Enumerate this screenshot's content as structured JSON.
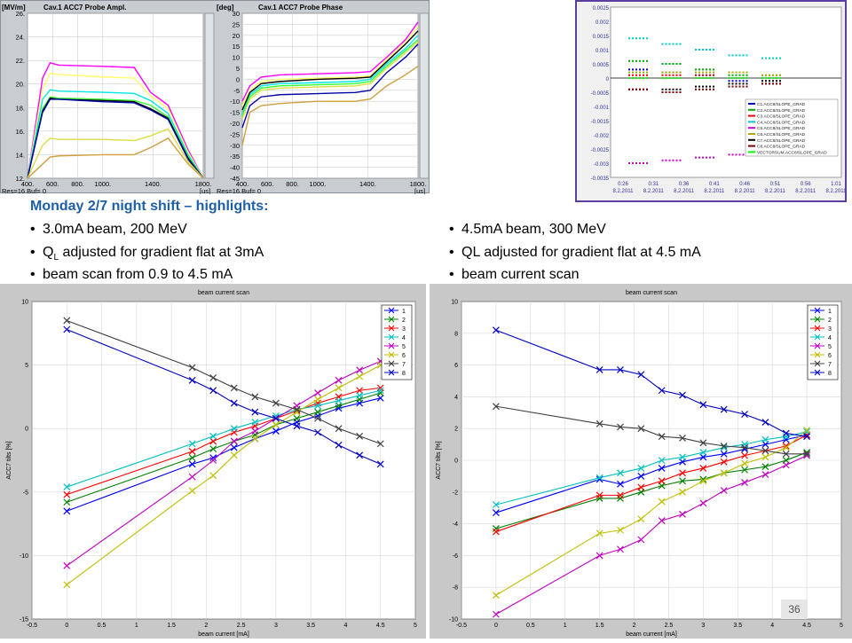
{
  "heading": "Monday 2/7 night shift – highlights:",
  "left_bullets": [
    "3.0mA beam, 200 MeV",
    "Q",
    "L",
    " adjusted for gradient flat at 3mA",
    "beam scan from 0.9 to 4.5 mA"
  ],
  "right_bullets": [
    "4.5mA beam, 300 MeV",
    "QL adjusted for gradient flat at 4.5 mA",
    "beam current scan"
  ],
  "slide_number": "36",
  "scope_left": {
    "title": "Cav.1 ACC7 Probe Ampl.",
    "unit": "[MV/m]",
    "status": "Res=16.Buf= 0",
    "xunit": "[us]",
    "yticks": [
      "26.",
      "24.",
      "22.",
      "20.",
      "18.",
      "16.",
      "14.",
      "12."
    ],
    "xticks": [
      "400.",
      "600.",
      "800.",
      "1000.",
      "1400.",
      "1800."
    ]
  },
  "scope_right": {
    "title": "Cav.1 ACC7 Probe Phase",
    "unit": "[deg]",
    "status": "Res=16.Buf= 0",
    "xunit": "[us]",
    "yticks": [
      "30",
      "25",
      "20",
      "15",
      "10",
      "5",
      "0",
      "-5",
      "-10",
      "-15",
      "-20",
      "-25",
      "-30",
      "-35",
      "-40",
      "-45"
    ],
    "xticks": [
      "400.",
      "600.",
      "800.",
      "1000.",
      "1400.",
      "1800."
    ]
  },
  "chart_data": [
    {
      "type": "line",
      "title": "Cav.1 ACC7 Probe Ampl.",
      "ylabel": "[MV/m]",
      "xlabel": "[us]",
      "xlim": [
        400,
        1800
      ],
      "ylim": [
        12,
        26
      ],
      "colors": [
        "#ff00ff",
        "#ffff66",
        "#00e5e5",
        "#33ff33",
        "#000000",
        "#0000aa",
        "#dddd44",
        "#d0a040"
      ],
      "series": [
        {
          "x": [
            400,
            520,
            580,
            650,
            1000,
            1250,
            1380,
            1520,
            1680,
            1800
          ],
          "values": [
            12,
            20.5,
            21.8,
            21.6,
            21.5,
            21.4,
            19.3,
            18.2,
            14.4,
            12
          ]
        },
        {
          "x": [
            400,
            520,
            580,
            650,
            1000,
            1250,
            1380,
            1520,
            1680,
            1800
          ],
          "values": [
            12,
            19.6,
            20.9,
            20.8,
            20.6,
            20.5,
            19.0,
            17.9,
            14.2,
            12
          ]
        },
        {
          "x": [
            400,
            520,
            580,
            650,
            1000,
            1250,
            1380,
            1520,
            1680,
            1800
          ],
          "values": [
            12,
            18.7,
            19.5,
            19.4,
            19.3,
            19.2,
            18.6,
            17.5,
            14.0,
            12
          ]
        },
        {
          "x": [
            400,
            520,
            580,
            650,
            1000,
            1250,
            1380,
            1520,
            1680,
            1800
          ],
          "values": [
            12,
            17.9,
            18.9,
            18.8,
            18.7,
            18.6,
            18.2,
            17.2,
            13.8,
            12
          ]
        },
        {
          "x": [
            400,
            520,
            580,
            650,
            1000,
            1250,
            1380,
            1520,
            1680,
            1800
          ],
          "values": [
            12,
            17.7,
            18.8,
            18.7,
            18.6,
            18.5,
            17.9,
            17.1,
            13.7,
            12
          ]
        },
        {
          "x": [
            400,
            520,
            580,
            650,
            1000,
            1250,
            1380,
            1520,
            1680,
            1800
          ],
          "values": [
            12,
            17.6,
            18.7,
            18.7,
            18.5,
            18.4,
            17.8,
            17.0,
            13.6,
            12
          ]
        },
        {
          "x": [
            400,
            520,
            580,
            650,
            1000,
            1250,
            1380,
            1520,
            1680,
            1800
          ],
          "values": [
            12,
            14.8,
            15.4,
            15.3,
            15.3,
            15.2,
            15.6,
            16.2,
            13.4,
            12
          ]
        },
        {
          "x": [
            400,
            520,
            580,
            650,
            1000,
            1250,
            1380,
            1520,
            1680,
            1800
          ],
          "values": [
            12,
            13.2,
            13.8,
            13.9,
            14.0,
            14.0,
            14.6,
            15.4,
            13.2,
            12
          ]
        }
      ]
    },
    {
      "type": "line",
      "title": "Cav.1 ACC7 Probe Phase",
      "ylabel": "[deg]",
      "xlabel": "[us]",
      "xlim": [
        400,
        1800
      ],
      "ylim": [
        -45,
        30
      ],
      "colors": [
        "#ff00ff",
        "#ffff66",
        "#00e5e5",
        "#33ff33",
        "#000000",
        "#0000aa",
        "#dddd44",
        "#d0a040"
      ],
      "series": [
        {
          "x": [
            400,
            460,
            550,
            700,
            1000,
            1300,
            1420,
            1550,
            1700,
            1800
          ],
          "values": [
            -10,
            -3,
            1,
            2,
            2.5,
            3,
            3.5,
            10,
            18,
            26
          ]
        },
        {
          "x": [
            400,
            460,
            550,
            700,
            1000,
            1300,
            1420,
            1550,
            1700,
            1800
          ],
          "values": [
            -12,
            -5,
            -1,
            0,
            0.5,
            1,
            1.5,
            9,
            17,
            24
          ]
        },
        {
          "x": [
            400,
            460,
            550,
            700,
            1000,
            1300,
            1420,
            1550,
            1700,
            1800
          ],
          "values": [
            -16,
            -7,
            -3,
            -2,
            -1.5,
            -1,
            0,
            7,
            14,
            20
          ]
        },
        {
          "x": [
            400,
            460,
            550,
            700,
            1000,
            1300,
            1420,
            1550,
            1700,
            1800
          ],
          "values": [
            -17,
            -8,
            -4,
            -3,
            -2.5,
            -2,
            -1,
            6,
            13,
            18
          ]
        },
        {
          "x": [
            400,
            460,
            550,
            700,
            1000,
            1300,
            1420,
            1550,
            1700,
            1800
          ],
          "values": [
            -14,
            -6,
            -2,
            -1,
            0,
            0.5,
            1,
            8,
            16,
            22
          ]
        },
        {
          "x": [
            400,
            460,
            550,
            700,
            1000,
            1300,
            1420,
            1550,
            1700,
            1800
          ],
          "values": [
            -22,
            -12,
            -8,
            -7,
            -6.5,
            -6,
            -5,
            3,
            10,
            16
          ]
        },
        {
          "x": [
            400,
            460,
            550,
            700,
            1000,
            1300,
            1420,
            1550,
            1700,
            1800
          ],
          "values": [
            -18,
            -9,
            -5,
            -4,
            -3.5,
            -3,
            -2,
            5,
            12,
            17
          ]
        },
        {
          "x": [
            400,
            460,
            550,
            700,
            1000,
            1300,
            1420,
            1550,
            1700,
            1800
          ],
          "values": [
            -30,
            -15,
            -12,
            -11,
            -10,
            -10,
            -9,
            -3,
            2,
            6
          ]
        }
      ]
    },
    {
      "type": "scatter",
      "title": "",
      "ylim": [
        -0.0035,
        0.0025
      ],
      "yticks": [
        "0.0025",
        "0.002",
        "0.0015",
        "0.001",
        "0.0005",
        "0",
        "-0.0005",
        "-0.001",
        "-0.0015",
        "-0.002",
        "-0.0025",
        "-0.003",
        "-0.0035"
      ],
      "xticks": [
        "0:26\n8.2.2011",
        "0:31\n8.2.2011",
        "0:36\n8.2.2011",
        "0:41\n8.2.2011",
        "0:46\n8.2.2011",
        "0:51\n8.2.2011",
        "0:56\n8.2.2011",
        "1:01\n8.2.2011"
      ],
      "legend_entries": [
        "C1.ACC8/SLOPE_GRAD",
        "C2.ACC8/SLOPE_GRAD",
        "C3.ACC8/SLOPE_GRAD",
        "C4.ACC8/SLOPE_GRAD",
        "C5.ACC8/SLOPE_GRAD",
        "C6.ACC8/SLOPE_GRAD",
        "C7.ACC8/SLOPE_GRAD",
        "C8.ACC8/SLOPE_GRAD",
        "VECTORSUM.ACC8/SLOPE_GRAD"
      ],
      "legend_colors": [
        "#0000cc",
        "#00aa00",
        "#ff0000",
        "#00cccc",
        "#cc00cc",
        "#aaaa00",
        "#000000",
        "#800000",
        "#00ff00"
      ],
      "series": [
        {
          "name": "C1.ACC8/SLOPE_GRAD",
          "values": [
            0.0003,
            0.0002,
            0.0001,
            -0.0001,
            -0.0002
          ]
        },
        {
          "name": "C2.ACC8/SLOPE_GRAD",
          "values": [
            0.0006,
            0.0005,
            0.0003,
            0.0001,
            0.0001
          ]
        },
        {
          "name": "C3.ACC8/SLOPE_GRAD",
          "values": [
            0.0001,
            0.0001,
            0.0001,
            0.0,
            0.0
          ]
        },
        {
          "name": "C4.ACC8/SLOPE_GRAD",
          "values": [
            0.0014,
            0.0012,
            0.001,
            0.0008,
            0.0007
          ]
        },
        {
          "name": "C5.ACC8/SLOPE_GRAD",
          "values": [
            -0.003,
            -0.0029,
            -0.0028,
            -0.0027,
            -0.0026
          ]
        },
        {
          "name": "C6.ACC8/SLOPE_GRAD",
          "values": [
            0.0002,
            0.0002,
            0.0002,
            0.0002,
            0.0001
          ]
        },
        {
          "name": "C7.ACC8/SLOPE_GRAD",
          "values": [
            -0.0004,
            -0.0004,
            -0.0003,
            -0.0002,
            -0.0001
          ]
        },
        {
          "name": "C8.ACC8/SLOPE_GRAD",
          "values": [
            -0.0004,
            -0.0005,
            -0.0004,
            -0.0003,
            -0.0002
          ]
        },
        {
          "name": "VECTORSUM.ACC8/SLOPE_GRAD",
          "values": [
            0.0,
            0.0,
            0.0,
            0.0,
            0.0
          ]
        }
      ]
    },
    {
      "type": "line",
      "title": "beam current scan",
      "xlabel": "beam current [mA]",
      "ylabel": "ACC7 tilts [%]",
      "xlim": [
        -0.5,
        5
      ],
      "ylim": [
        -15,
        10
      ],
      "xticks": [
        "-0.5",
        "0",
        "0.5",
        "1",
        "1.5",
        "2",
        "2.5",
        "3",
        "3.5",
        "4",
        "4.5",
        "5"
      ],
      "yticks": [
        "10",
        "5",
        "0",
        "-5",
        "-10",
        "-15"
      ],
      "grid": true,
      "legend": "top-right",
      "x": [
        0,
        1.8,
        2.1,
        2.4,
        2.7,
        3.0,
        3.3,
        3.6,
        3.9,
        4.2,
        4.5
      ],
      "series": [
        {
          "name": "1",
          "color": "#0000ff",
          "values": [
            -6.5,
            -2.8,
            -2.3,
            -1.5,
            -0.8,
            -0.2,
            0.5,
            1.0,
            1.6,
            2.0,
            2.4
          ]
        },
        {
          "name": "2",
          "color": "#008000",
          "values": [
            -5.8,
            -2.3,
            -1.6,
            -1.0,
            -0.5,
            0.3,
            0.8,
            1.3,
            1.8,
            2.3,
            2.8
          ]
        },
        {
          "name": "3",
          "color": "#ff0000",
          "values": [
            -5.2,
            -1.8,
            -1.0,
            -0.3,
            0.2,
            0.8,
            1.4,
            2.0,
            2.5,
            3.0,
            3.2
          ]
        },
        {
          "name": "4",
          "color": "#00bfbf",
          "values": [
            -4.6,
            -1.2,
            -0.6,
            0.0,
            0.5,
            1.0,
            1.5,
            1.8,
            2.2,
            2.6,
            3.0
          ]
        },
        {
          "name": "5",
          "color": "#bf00bf",
          "values": [
            -10.8,
            -3.8,
            -2.5,
            -1.0,
            -0.2,
            0.8,
            1.8,
            2.8,
            3.8,
            4.6,
            5.3
          ]
        },
        {
          "name": "6",
          "color": "#bfbf00",
          "values": [
            -12.3,
            -4.9,
            -3.7,
            -2.1,
            -0.8,
            0.3,
            1.3,
            2.3,
            3.2,
            4.1,
            5.0
          ]
        },
        {
          "name": "7",
          "color": "#404040",
          "values": [
            8.5,
            4.8,
            4.0,
            3.2,
            2.5,
            2.0,
            1.5,
            0.8,
            0.0,
            -0.6,
            -1.2
          ]
        },
        {
          "name": "8",
          "color": "#0000bf",
          "values": [
            7.8,
            3.8,
            3.0,
            2.0,
            1.3,
            0.8,
            0.2,
            -0.3,
            -1.3,
            -2.1,
            -2.8
          ]
        }
      ]
    },
    {
      "type": "line",
      "title": "beam current scan",
      "xlabel": "beam current [mA]",
      "ylabel": "ACC7 tilts [%]",
      "xlim": [
        -0.5,
        5
      ],
      "ylim": [
        -10,
        10
      ],
      "xticks": [
        "-0.5",
        "0",
        "0.5",
        "1",
        "1.5",
        "2",
        "2.5",
        "3",
        "3.5",
        "4",
        "4.5",
        "5"
      ],
      "yticks": [
        "10",
        "8",
        "6",
        "4",
        "2",
        "0",
        "-2",
        "-4",
        "-6",
        "-8",
        "-10"
      ],
      "grid": true,
      "legend": "top-right",
      "x": [
        0,
        1.5,
        1.8,
        2.1,
        2.4,
        2.7,
        3.0,
        3.3,
        3.6,
        3.9,
        4.2,
        4.5
      ],
      "series": [
        {
          "name": "1",
          "color": "#0000ff",
          "values": [
            -3.3,
            -1.2,
            -1.5,
            -1.0,
            -0.5,
            -0.1,
            0.2,
            0.4,
            0.7,
            1.0,
            1.3,
            1.6
          ]
        },
        {
          "name": "2",
          "color": "#008000",
          "values": [
            -4.3,
            -2.4,
            -2.4,
            -2.0,
            -1.6,
            -1.3,
            -1.2,
            -0.8,
            -0.6,
            -0.4,
            0.0,
            0.5
          ]
        },
        {
          "name": "3",
          "color": "#ff0000",
          "values": [
            -4.5,
            -2.2,
            -2.2,
            -1.7,
            -1.3,
            -0.8,
            -0.5,
            -0.1,
            0.3,
            0.6,
            0.9,
            1.6
          ]
        },
        {
          "name": "4",
          "color": "#00bfbf",
          "values": [
            -2.8,
            -1.1,
            -0.8,
            -0.5,
            0.0,
            0.2,
            0.5,
            0.8,
            1.0,
            1.3,
            1.5,
            1.8
          ]
        },
        {
          "name": "5",
          "color": "#bf00bf",
          "values": [
            -9.7,
            -6.0,
            -5.6,
            -5.0,
            -3.8,
            -3.4,
            -2.7,
            -1.9,
            -1.4,
            -0.9,
            -0.3,
            0.3
          ]
        },
        {
          "name": "6",
          "color": "#bfbf00",
          "values": [
            -8.5,
            -4.6,
            -4.4,
            -3.7,
            -2.6,
            -2.0,
            -1.3,
            -0.8,
            -0.2,
            0.2,
            0.8,
            1.9
          ]
        },
        {
          "name": "7",
          "color": "#404040",
          "values": [
            3.4,
            2.3,
            2.1,
            2.0,
            1.5,
            1.4,
            1.1,
            0.9,
            0.8,
            0.6,
            0.4,
            0.4
          ]
        },
        {
          "name": "8",
          "color": "#0000bf",
          "values": [
            8.2,
            5.7,
            5.7,
            5.4,
            4.4,
            4.1,
            3.5,
            3.2,
            2.9,
            2.4,
            1.7,
            1.5
          ]
        }
      ]
    }
  ]
}
